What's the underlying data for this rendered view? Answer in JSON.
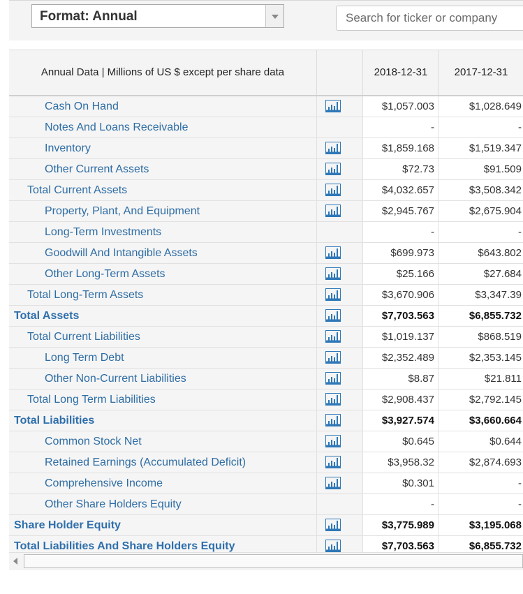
{
  "controls": {
    "format_label": "Format: Annual",
    "search_placeholder": "Search for ticker or company"
  },
  "table": {
    "header": {
      "label": "Annual Data | Millions of US $ except per share data",
      "dates": [
        "2018-12-31",
        "2017-12-31"
      ]
    },
    "rows": [
      {
        "label": "Cash On Hand",
        "level": 2,
        "chart": true,
        "v1": "$1,057.003",
        "v2": "$1,028.649"
      },
      {
        "label": "Notes And Loans Receivable",
        "level": 2,
        "chart": false,
        "v1": "-",
        "v2": "-"
      },
      {
        "label": "Inventory",
        "level": 2,
        "chart": true,
        "v1": "$1,859.168",
        "v2": "$1,519.347"
      },
      {
        "label": "Other Current Assets",
        "level": 2,
        "chart": true,
        "v1": "$72.73",
        "v2": "$91.509"
      },
      {
        "label": "Total Current Assets",
        "level": 1,
        "chart": true,
        "v1": "$4,032.657",
        "v2": "$3,508.342"
      },
      {
        "label": "Property, Plant, And Equipment",
        "level": 2,
        "chart": true,
        "v1": "$2,945.767",
        "v2": "$2,675.904"
      },
      {
        "label": "Long-Term Investments",
        "level": 2,
        "chart": false,
        "v1": "-",
        "v2": "-"
      },
      {
        "label": "Goodwill And Intangible Assets",
        "level": 2,
        "chart": true,
        "v1": "$699.973",
        "v2": "$643.802"
      },
      {
        "label": "Other Long-Term Assets",
        "level": 2,
        "chart": true,
        "v1": "$25.166",
        "v2": "$27.684"
      },
      {
        "label": "Total Long-Term Assets",
        "level": 1,
        "chart": true,
        "v1": "$3,670.906",
        "v2": "$3,347.39"
      },
      {
        "label": "Total Assets",
        "level": 0,
        "chart": true,
        "v1": "$7,703.563",
        "v2": "$6,855.732"
      },
      {
        "label": "Total Current Liabilities",
        "level": 1,
        "chart": true,
        "v1": "$1,019.137",
        "v2": "$868.519"
      },
      {
        "label": "Long Term Debt",
        "level": 2,
        "chart": true,
        "v1": "$2,352.489",
        "v2": "$2,353.145"
      },
      {
        "label": "Other Non-Current Liabilities",
        "level": 2,
        "chart": true,
        "v1": "$8.87",
        "v2": "$21.811"
      },
      {
        "label": "Total Long Term Liabilities",
        "level": 1,
        "chart": true,
        "v1": "$2,908.437",
        "v2": "$2,792.145"
      },
      {
        "label": "Total Liabilities",
        "level": 0,
        "chart": true,
        "v1": "$3,927.574",
        "v2": "$3,660.664"
      },
      {
        "label": "Common Stock Net",
        "level": 2,
        "chart": true,
        "v1": "$0.645",
        "v2": "$0.644"
      },
      {
        "label": "Retained Earnings (Accumulated Deficit)",
        "level": 2,
        "chart": true,
        "v1": "$3,958.32",
        "v2": "$2,874.693"
      },
      {
        "label": "Comprehensive Income",
        "level": 2,
        "chart": true,
        "v1": "$0.301",
        "v2": "-"
      },
      {
        "label": "Other Share Holders Equity",
        "level": 2,
        "chart": false,
        "v1": "-",
        "v2": "-"
      },
      {
        "label": "Share Holder Equity",
        "level": 0,
        "chart": true,
        "v1": "$3,775.989",
        "v2": "$3,195.068"
      },
      {
        "label": "Total Liabilities And Share Holders Equity",
        "level": 0,
        "chart": true,
        "v1": "$7,703.563",
        "v2": "$6,855.732"
      }
    ]
  },
  "icons": {
    "chart": "bar-chart-icon",
    "dropdown": "chevron-down-icon",
    "scroll_left": "arrow-left-icon"
  },
  "colors": {
    "link": "#2e6da4",
    "icon": "#2e78b7",
    "header_bg": "#f4f4f4"
  }
}
